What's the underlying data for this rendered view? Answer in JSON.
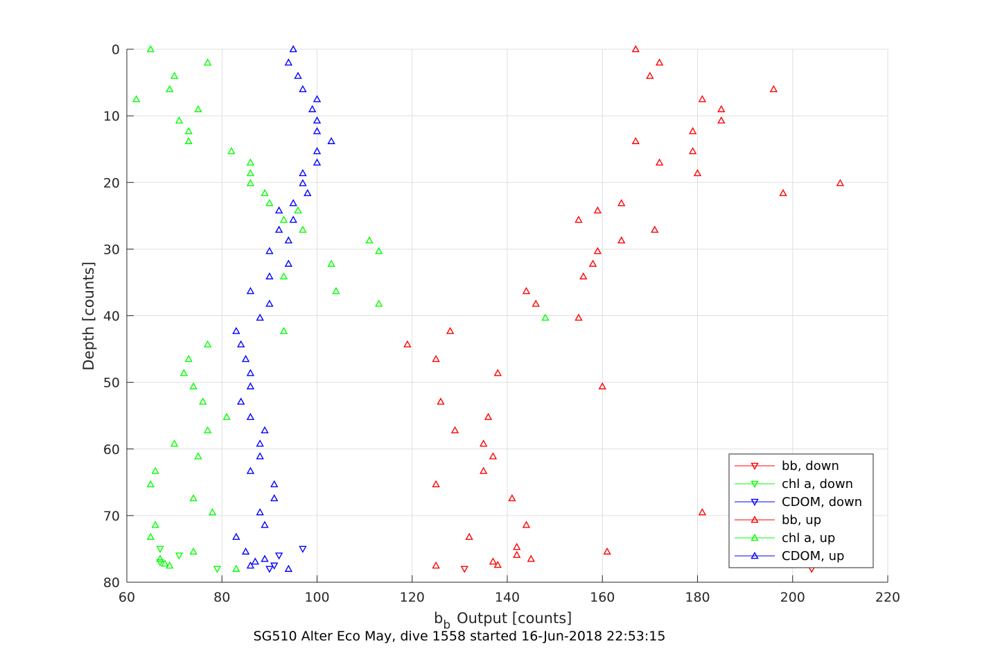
{
  "chart_data": {
    "type": "scatter",
    "title": "",
    "xlabel": "Output [counts]",
    "xlabel_symbol": "b",
    "xlabel_subscript": "b",
    "ylabel": "Depth [counts]",
    "caption": "SG510 Alter Eco May, dive 1558 started 16-Jun-2018 22:53:15",
    "xlim": [
      60,
      220
    ],
    "ylim": [
      0,
      80
    ],
    "y_reversed": true,
    "xticks": [
      60,
      80,
      100,
      120,
      140,
      160,
      180,
      200,
      220
    ],
    "yticks": [
      0,
      10,
      20,
      30,
      40,
      50,
      60,
      70,
      80
    ],
    "grid": true,
    "legend_position": "bottom-right",
    "series": [
      {
        "name": "bb, down",
        "color": "#ff0000",
        "marker": "triangle-down",
        "points": [
          [
            131,
            78
          ],
          [
            204,
            78
          ]
        ]
      },
      {
        "name": "chl a, down",
        "color": "#00ff00",
        "marker": "triangle-down",
        "points": [
          [
            67,
            75
          ],
          [
            71,
            76
          ],
          [
            67,
            77
          ],
          [
            79,
            78
          ]
        ]
      },
      {
        "name": "CDOM, down",
        "color": "#0000ff",
        "marker": "triangle-down",
        "points": [
          [
            97,
            75
          ],
          [
            92,
            76
          ],
          [
            91,
            77.5
          ],
          [
            90,
            78
          ]
        ]
      },
      {
        "name": "bb, up",
        "color": "#ff0000",
        "marker": "triangle-up",
        "points": [
          [
            167,
            0
          ],
          [
            172,
            2
          ],
          [
            170,
            4
          ],
          [
            196,
            6
          ],
          [
            181,
            7.5
          ],
          [
            185,
            9
          ],
          [
            185,
            10.7
          ],
          [
            179,
            12.3
          ],
          [
            167,
            13.8
          ],
          [
            179,
            15.3
          ],
          [
            172,
            17
          ],
          [
            180,
            18.6
          ],
          [
            210,
            20.1
          ],
          [
            198,
            21.6
          ],
          [
            164,
            23.1
          ],
          [
            159,
            24.2
          ],
          [
            155,
            25.6
          ],
          [
            171,
            27.1
          ],
          [
            164,
            28.7
          ],
          [
            159,
            30.3
          ],
          [
            158,
            32.2
          ],
          [
            156,
            34.1
          ],
          [
            144,
            36.3
          ],
          [
            146,
            38.2
          ],
          [
            155,
            40.3
          ],
          [
            128,
            42.3
          ],
          [
            119,
            44.3
          ],
          [
            125,
            46.5
          ],
          [
            138,
            48.6
          ],
          [
            160,
            50.6
          ],
          [
            126,
            52.9
          ],
          [
            136,
            55.2
          ],
          [
            129,
            57.2
          ],
          [
            135,
            59.2
          ],
          [
            137,
            61.1
          ],
          [
            135,
            63.3
          ],
          [
            125,
            65.3
          ],
          [
            141,
            67.4
          ],
          [
            181,
            69.5
          ],
          [
            144,
            71.4
          ],
          [
            132,
            73.2
          ],
          [
            142,
            74.7
          ],
          [
            161,
            75.4
          ],
          [
            142,
            75.9
          ],
          [
            145,
            76.5
          ],
          [
            137,
            76.9
          ],
          [
            138,
            77.4
          ],
          [
            125,
            77.5
          ]
        ]
      },
      {
        "name": "chl a, up",
        "color": "#00ff00",
        "marker": "triangle-up",
        "points": [
          [
            65,
            0
          ],
          [
            77,
            2
          ],
          [
            70,
            4
          ],
          [
            69,
            6
          ],
          [
            62,
            7.5
          ],
          [
            75,
            9
          ],
          [
            71,
            10.7
          ],
          [
            73,
            12.3
          ],
          [
            73,
            13.8
          ],
          [
            82,
            15.3
          ],
          [
            86,
            17
          ],
          [
            86,
            18.6
          ],
          [
            86,
            20.1
          ],
          [
            89,
            21.6
          ],
          [
            90,
            23.1
          ],
          [
            96,
            24.2
          ],
          [
            93,
            25.6
          ],
          [
            97,
            27.1
          ],
          [
            111,
            28.7
          ],
          [
            113,
            30.3
          ],
          [
            103,
            32.2
          ],
          [
            93,
            34.1
          ],
          [
            104,
            36.3
          ],
          [
            113,
            38.2
          ],
          [
            148,
            40.3
          ],
          [
            93,
            42.3
          ],
          [
            77,
            44.3
          ],
          [
            73,
            46.5
          ],
          [
            72,
            48.6
          ],
          [
            74,
            50.6
          ],
          [
            76,
            52.9
          ],
          [
            81,
            55.2
          ],
          [
            77,
            57.2
          ],
          [
            70,
            59.2
          ],
          [
            75,
            61.1
          ],
          [
            66,
            63.3
          ],
          [
            65,
            65.3
          ],
          [
            74,
            67.4
          ],
          [
            78,
            69.5
          ],
          [
            66,
            71.4
          ],
          [
            65,
            73.2
          ],
          [
            74,
            75.4
          ],
          [
            67,
            76.5
          ],
          [
            68,
            77.2
          ],
          [
            69,
            77.5
          ],
          [
            83,
            78
          ]
        ]
      },
      {
        "name": "CDOM, up",
        "color": "#0000ff",
        "marker": "triangle-up",
        "points": [
          [
            95,
            0
          ],
          [
            94,
            2
          ],
          [
            96,
            4
          ],
          [
            97,
            6
          ],
          [
            100,
            7.5
          ],
          [
            99,
            9
          ],
          [
            100,
            10.7
          ],
          [
            100,
            12.3
          ],
          [
            103,
            13.8
          ],
          [
            100,
            15.3
          ],
          [
            100,
            17
          ],
          [
            97,
            18.6
          ],
          [
            97,
            20.1
          ],
          [
            98,
            21.6
          ],
          [
            95,
            23.1
          ],
          [
            92,
            24.2
          ],
          [
            95,
            25.6
          ],
          [
            92,
            27.1
          ],
          [
            94,
            28.7
          ],
          [
            90,
            30.3
          ],
          [
            94,
            32.2
          ],
          [
            90,
            34.1
          ],
          [
            86,
            36.3
          ],
          [
            90,
            38.2
          ],
          [
            88,
            40.3
          ],
          [
            83,
            42.3
          ],
          [
            84,
            44.3
          ],
          [
            85,
            46.5
          ],
          [
            86,
            48.6
          ],
          [
            86,
            50.6
          ],
          [
            84,
            52.9
          ],
          [
            86,
            55.2
          ],
          [
            89,
            57.2
          ],
          [
            88,
            59.2
          ],
          [
            88,
            61.1
          ],
          [
            86,
            63.3
          ],
          [
            91,
            65.3
          ],
          [
            91,
            67.4
          ],
          [
            88,
            69.5
          ],
          [
            89,
            71.4
          ],
          [
            83,
            73.2
          ],
          [
            85,
            75.4
          ],
          [
            87,
            76.9
          ],
          [
            89,
            76.5
          ],
          [
            86,
            77.5
          ],
          [
            94,
            78
          ]
        ]
      }
    ]
  }
}
